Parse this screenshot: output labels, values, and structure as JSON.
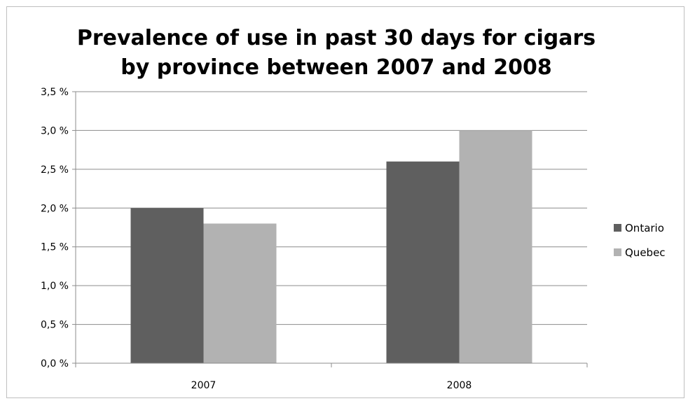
{
  "chart_data": {
    "type": "bar",
    "title_lines": [
      "Prevalence of use in past 30 days for cigars",
      "by province between 2007 and 2008"
    ],
    "categories": [
      "2007",
      "2008"
    ],
    "series": [
      {
        "name": "Ontario",
        "values": [
          2.0,
          2.6
        ],
        "color": "#5f5f5f"
      },
      {
        "name": "Quebec",
        "values": [
          1.8,
          3.0
        ],
        "color": "#b2b2b2"
      }
    ],
    "ylim": [
      0,
      3.5
    ],
    "y_ticks": [
      0,
      0.5,
      1.0,
      1.5,
      2.0,
      2.5,
      3.0,
      3.5
    ],
    "y_tick_labels": [
      "0,0 %",
      "0,5 %",
      "1,0 %",
      "1,5 %",
      "2,0 %",
      "2,5 %",
      "3,0 %",
      "3,5 %"
    ],
    "grid": true,
    "legend_position": "right",
    "xlabel": "",
    "ylabel": ""
  }
}
